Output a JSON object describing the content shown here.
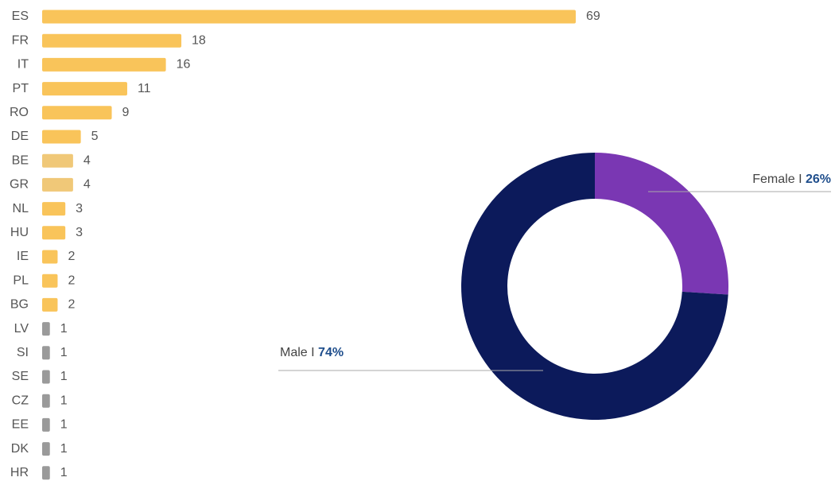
{
  "chart_data": [
    {
      "type": "bar",
      "categories": [
        "ES",
        "FR",
        "IT",
        "PT",
        "RO",
        "DE",
        "BE",
        "GR",
        "NL",
        "HU",
        "IE",
        "PL",
        "BG",
        "LV",
        "SI",
        "SE",
        "CZ",
        "EE",
        "DK",
        "HR"
      ],
      "values": [
        69,
        18,
        16,
        11,
        9,
        5,
        4,
        4,
        3,
        3,
        2,
        2,
        2,
        1,
        1,
        1,
        1,
        1,
        1,
        1
      ],
      "colors": [
        "#f9c45a",
        "#f9c45a",
        "#f9c45a",
        "#f9c45a",
        "#f9c45a",
        "#f9c45a",
        "#f0c878",
        "#f0c878",
        "#f9c45a",
        "#f9c45a",
        "#f9c45a",
        "#f9c45a",
        "#f9c45a",
        "#9a9a9a",
        "#9a9a9a",
        "#9a9a9a",
        "#9a9a9a",
        "#9a9a9a",
        "#9a9a9a",
        "#9a9a9a"
      ]
    },
    {
      "type": "donut",
      "separator": "I",
      "categories": [
        "Female",
        "Male"
      ],
      "values": [
        26,
        74
      ],
      "value_labels": [
        "26%",
        "74%"
      ],
      "colors": [
        "#7a37b3",
        "#0c1a5b"
      ]
    }
  ]
}
